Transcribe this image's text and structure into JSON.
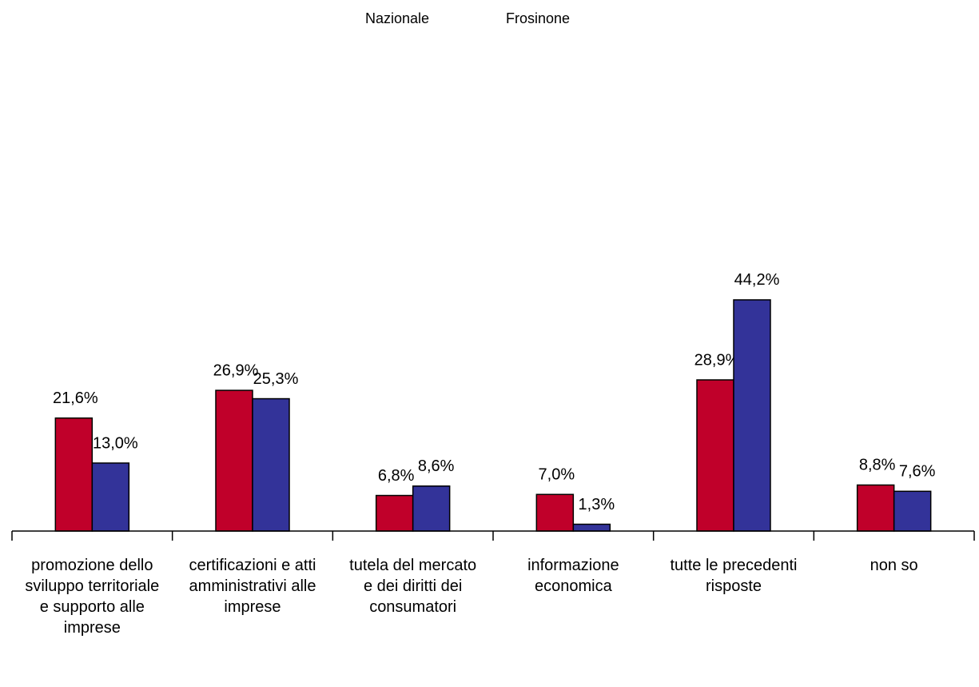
{
  "chart_data": {
    "type": "bar",
    "categories": [
      "promozione dello sviluppo territoriale e supporto alle imprese",
      "certificazioni e atti amministrativi alle imprese",
      "tutela del mercato e dei diritti dei consumatori",
      "informazione economica",
      "tutte le precedenti risposte",
      "non so"
    ],
    "series": [
      {
        "name": "Nazionale",
        "color": "#c0002a",
        "values": [
          21.6,
          26.9,
          6.8,
          7.0,
          28.9,
          8.8
        ],
        "value_labels": [
          "21,6%",
          "26,9%",
          "6,8%",
          "7,0%",
          "28,9%",
          "8,8%"
        ]
      },
      {
        "name": "Frosinone",
        "color": "#333399",
        "values": [
          13.0,
          25.3,
          8.6,
          1.3,
          44.2,
          7.6
        ],
        "value_labels": [
          "13,0%",
          "25,3%",
          "8,6%",
          "1,3%",
          "44,2%",
          "7,6%"
        ]
      }
    ],
    "ylim": [
      0,
      100
    ]
  }
}
